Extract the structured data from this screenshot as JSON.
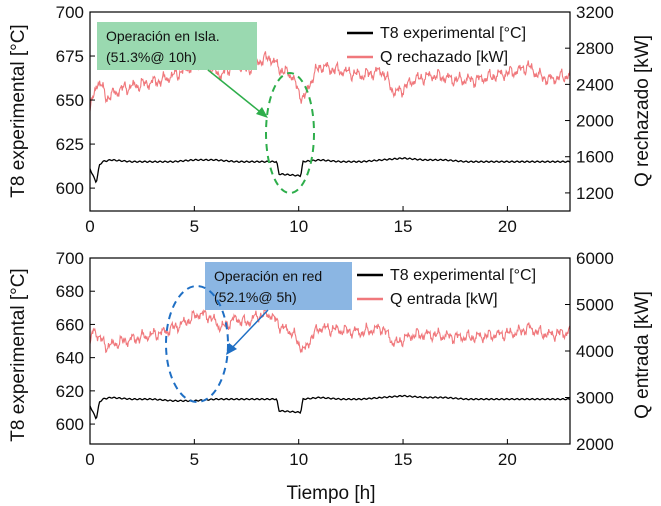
{
  "figure": {
    "xlabel": "Tiempo [h]"
  },
  "colors": {
    "t8": "#000000",
    "q": "#f0787c",
    "ann_green_fill": "#9ad9b0",
    "ann_green_line": "#2eae4b",
    "ann_blue_fill": "#8bb6e3",
    "ann_blue_line": "#1f6fc4"
  },
  "chart_data": [
    {
      "type": "line",
      "title": "",
      "xlabel": "",
      "ylabel_left": "T8 experimental [°C]",
      "ylabel_right": "Q rechazado [kW]",
      "xlim": [
        0,
        23
      ],
      "ylim_left": [
        587,
        700
      ],
      "ylim_right": [
        1000,
        3200
      ],
      "x_ticks": [
        0,
        5,
        10,
        15,
        20
      ],
      "y_ticks_left": [
        600,
        625,
        650,
        675,
        700
      ],
      "y_ticks_right": [
        1200,
        1600,
        2000,
        2400,
        2800,
        3200
      ],
      "legend_position": "top-right",
      "series": [
        {
          "name": "T8 experimental [°C]",
          "axis": "left",
          "x": [
            0,
            0.15,
            0.3,
            0.45,
            0.6,
            1,
            2,
            3,
            4,
            5,
            6,
            7,
            8,
            8.95,
            9.05,
            10.1,
            10.2,
            11,
            12,
            13,
            14,
            15,
            16,
            17,
            18,
            19,
            20,
            21,
            22,
            23
          ],
          "values": [
            611,
            607,
            603,
            613,
            615,
            616,
            615,
            615,
            615,
            616,
            616,
            615,
            615,
            615,
            608,
            607,
            615,
            616,
            615,
            615,
            616,
            617,
            616,
            616,
            615,
            615,
            615,
            615,
            615,
            615
          ]
        },
        {
          "name": "Q rechazado [kW]",
          "axis": "right",
          "x": [
            0,
            0.2,
            0.4,
            0.8,
            1.5,
            2.5,
            3.5,
            4.5,
            5.2,
            5.7,
            6.3,
            7,
            7.5,
            8,
            8.6,
            9.2,
            9.7,
            10,
            10.3,
            10.6,
            11,
            12,
            13,
            14,
            14.6,
            15,
            15.5,
            16.5,
            17.5,
            18.5,
            19.5,
            20.5,
            21,
            21.5,
            22,
            22.5,
            23
          ],
          "values": [
            2100,
            2300,
            2450,
            2250,
            2350,
            2400,
            2450,
            2550,
            2650,
            2600,
            2500,
            2650,
            2550,
            2650,
            2700,
            2550,
            2500,
            2300,
            2250,
            2450,
            2600,
            2550,
            2500,
            2550,
            2300,
            2350,
            2450,
            2500,
            2450,
            2450,
            2500,
            2550,
            2600,
            2500,
            2450,
            2480,
            2500
          ]
        }
      ],
      "annotation": {
        "line1": "Operación en Isla.",
        "line2": "(51.3%@ 10h)"
      }
    },
    {
      "type": "line",
      "title": "",
      "xlabel": "Tiempo [h]",
      "ylabel_left": "T8 experimental [°C]",
      "ylabel_right": "Q entrada [kW]",
      "xlim": [
        0,
        23
      ],
      "ylim_left": [
        588,
        700
      ],
      "ylim_right": [
        2000,
        6000
      ],
      "x_ticks": [
        0,
        5,
        10,
        15,
        20
      ],
      "y_ticks_left": [
        600,
        620,
        640,
        660,
        680,
        700
      ],
      "y_ticks_right": [
        2000,
        3000,
        4000,
        5000,
        6000
      ],
      "legend_position": "top-right",
      "series": [
        {
          "name": "T8 experimental [°C]",
          "axis": "left",
          "x": [
            0,
            0.15,
            0.3,
            0.45,
            0.6,
            1,
            2,
            3,
            4,
            5,
            6,
            7,
            8,
            8.95,
            9.05,
            10.1,
            10.2,
            11,
            12,
            13,
            14,
            15,
            16,
            17,
            18,
            19,
            20,
            21,
            22,
            23
          ],
          "values": [
            611,
            607,
            603,
            613,
            615,
            616,
            615,
            615,
            614,
            614,
            615,
            615,
            615,
            615,
            608,
            607,
            615,
            616,
            615,
            615,
            616,
            617,
            616,
            616,
            615,
            615,
            615,
            615,
            615,
            615
          ]
        },
        {
          "name": "Q entrada [kW]",
          "axis": "right",
          "x": [
            0,
            0.2,
            0.4,
            0.8,
            1.5,
            2.5,
            3.5,
            4.5,
            5.2,
            5.7,
            6.3,
            7,
            7.5,
            8,
            8.6,
            9.2,
            9.7,
            10,
            10.3,
            10.6,
            11,
            12,
            13,
            14,
            14.6,
            15,
            15.5,
            16.5,
            17.5,
            18.5,
            19.5,
            20.5,
            21,
            21.5,
            22,
            22.5,
            23
          ],
          "values": [
            4100,
            4500,
            4300,
            4100,
            4200,
            4300,
            4400,
            4600,
            4800,
            4750,
            4500,
            4700,
            4600,
            4750,
            4800,
            4500,
            4400,
            4150,
            4000,
            4300,
            4500,
            4450,
            4400,
            4500,
            4150,
            4250,
            4350,
            4350,
            4300,
            4300,
            4350,
            4400,
            4500,
            4400,
            4350,
            4380,
            4400
          ]
        }
      ],
      "annotation": {
        "line1": "Operación en red",
        "line2": "(52.1%@ 5h)"
      }
    }
  ]
}
